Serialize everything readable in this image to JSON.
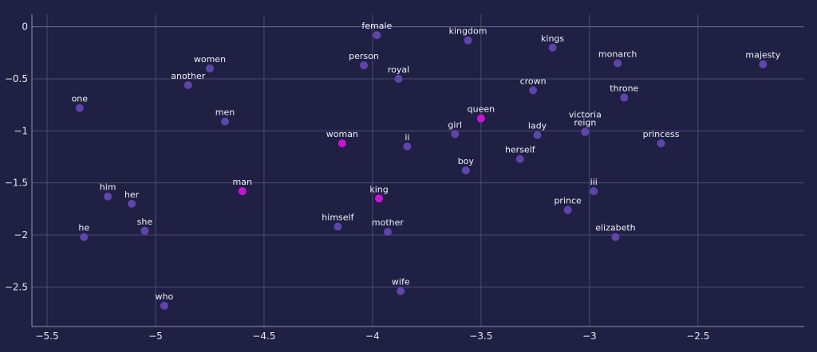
{
  "chart_data": {
    "type": "scatter",
    "title": "",
    "xlabel": "",
    "ylabel": "",
    "xlim": [
      -5.57,
      -2.01
    ],
    "ylim": [
      -2.88,
      0.12
    ],
    "x_ticks": [
      -5.5,
      -5,
      -4.5,
      -4,
      -3.5,
      -3,
      -2.5
    ],
    "x_tick_labels": [
      "−5.5",
      "−5",
      "−4.5",
      "−4",
      "−3.5",
      "−3",
      "−2.5"
    ],
    "y_ticks": [
      0,
      -0.5,
      -1,
      -1.5,
      -2,
      -2.5
    ],
    "y_tick_labels": [
      "0",
      "−0.5",
      "−1",
      "−1.5",
      "−2",
      "−2.5"
    ],
    "grid": true,
    "colors": {
      "background": "#1f2044",
      "grid": "#4a4b70",
      "point": "#5f45ab",
      "highlight": "#cc12d6",
      "text": "#f0f0f6"
    },
    "points": [
      {
        "label": "female",
        "x": -3.98,
        "y": -0.08,
        "highlight": false
      },
      {
        "label": "kingdom",
        "x": -3.56,
        "y": -0.13,
        "highlight": false
      },
      {
        "label": "kings",
        "x": -3.17,
        "y": -0.2,
        "highlight": false
      },
      {
        "label": "monarch",
        "x": -2.87,
        "y": -0.35,
        "highlight": false
      },
      {
        "label": "majesty",
        "x": -2.2,
        "y": -0.36,
        "highlight": false
      },
      {
        "label": "women",
        "x": -4.75,
        "y": -0.4,
        "highlight": false
      },
      {
        "label": "person",
        "x": -4.04,
        "y": -0.37,
        "highlight": false
      },
      {
        "label": "royal",
        "x": -3.88,
        "y": -0.5,
        "highlight": false
      },
      {
        "label": "another",
        "x": -4.85,
        "y": -0.56,
        "highlight": false
      },
      {
        "label": "crown",
        "x": -3.26,
        "y": -0.61,
        "highlight": false
      },
      {
        "label": "throne",
        "x": -2.84,
        "y": -0.68,
        "highlight": false
      },
      {
        "label": "one",
        "x": -5.35,
        "y": -0.78,
        "highlight": false
      },
      {
        "label": "men",
        "x": -4.68,
        "y": -0.91,
        "highlight": false
      },
      {
        "label": "queen",
        "x": -3.5,
        "y": -0.88,
        "highlight": true
      },
      {
        "label": "girl",
        "x": -3.62,
        "y": -1.03,
        "highlight": false
      },
      {
        "label": "lady",
        "x": -3.24,
        "y": -1.04,
        "highlight": false
      },
      {
        "label": "victoria",
        "x": -3.02,
        "y": -1.01,
        "highlight": false
      },
      {
        "label": "reign",
        "x": -3.02,
        "y": -1.01,
        "highlight": false
      },
      {
        "label": "princess",
        "x": -2.67,
        "y": -1.12,
        "highlight": false
      },
      {
        "label": "woman",
        "x": -4.14,
        "y": -1.12,
        "highlight": true
      },
      {
        "label": "ii",
        "x": -3.84,
        "y": -1.15,
        "highlight": false
      },
      {
        "label": "herself",
        "x": -3.32,
        "y": -1.27,
        "highlight": false
      },
      {
        "label": "boy",
        "x": -3.57,
        "y": -1.38,
        "highlight": false
      },
      {
        "label": "him",
        "x": -5.22,
        "y": -1.63,
        "highlight": false
      },
      {
        "label": "her",
        "x": -5.11,
        "y": -1.7,
        "highlight": false
      },
      {
        "label": "man",
        "x": -4.6,
        "y": -1.58,
        "highlight": true
      },
      {
        "label": "king",
        "x": -3.97,
        "y": -1.65,
        "highlight": true
      },
      {
        "label": "iii",
        "x": -2.98,
        "y": -1.58,
        "highlight": false
      },
      {
        "label": "prince",
        "x": -3.1,
        "y": -1.76,
        "highlight": false
      },
      {
        "label": "she",
        "x": -5.05,
        "y": -1.96,
        "highlight": false
      },
      {
        "label": "he",
        "x": -5.33,
        "y": -2.02,
        "highlight": false
      },
      {
        "label": "himself",
        "x": -4.16,
        "y": -1.92,
        "highlight": false
      },
      {
        "label": "mother",
        "x": -3.93,
        "y": -1.97,
        "highlight": false
      },
      {
        "label": "elizabeth",
        "x": -2.88,
        "y": -2.02,
        "highlight": false
      },
      {
        "label": "wife",
        "x": -3.87,
        "y": -2.54,
        "highlight": false
      },
      {
        "label": "who",
        "x": -4.96,
        "y": -2.68,
        "highlight": false
      }
    ]
  }
}
